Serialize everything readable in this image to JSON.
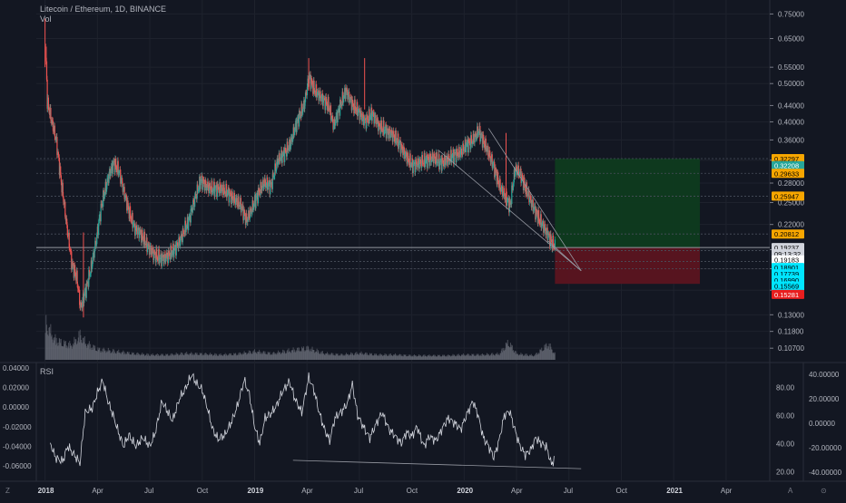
{
  "header": {
    "title": "Litecoin / Ethereum, 1D, BINANCE",
    "volume_label": "Vol",
    "rsi_label": "RSI"
  },
  "colors": {
    "background": "#131722",
    "up": "#26a69a",
    "down": "#ef5350",
    "volume": "#787b86",
    "rsi_line": "#d1d4dc",
    "profit_zone": "#0e3b1f",
    "loss_zone": "#5b1420",
    "grid": "#1e222d",
    "text": "#b2b5be"
  },
  "chart_data": [
    {
      "type": "candlestick",
      "title": "Litecoin / Ethereum, 1D, BINANCE",
      "scale": "log",
      "ylim": [
        0.1,
        0.78
      ],
      "price_axis_ticks": [
        "0.75000",
        "0.65000",
        "0.55000",
        "0.50000",
        "0.44000",
        "0.40000",
        "0.36000",
        "0.32000",
        "0.28000",
        "0.25000",
        "0.22000",
        "0.19000",
        "0.17000",
        "0.15000",
        "0.13000",
        "0.11800",
        "0.10700"
      ],
      "price_axis_values": [
        0.75,
        0.65,
        0.55,
        0.5,
        0.44,
        0.4,
        0.36,
        0.32,
        0.28,
        0.25,
        0.22,
        0.19,
        0.17,
        0.15,
        0.13,
        0.118,
        0.107
      ],
      "price_badges": [
        {
          "label": "0.32297",
          "value": 0.32297,
          "color": "#f7a600",
          "text_color": "#000000"
        },
        {
          "label": "0.32208",
          "value": 0.31,
          "color": "#26a69a",
          "text_color": "#ffffff"
        },
        {
          "label": "0.29633",
          "value": 0.29633,
          "color": "#f7a600",
          "text_color": "#000000"
        },
        {
          "label": "0.25947",
          "value": 0.25947,
          "color": "#f7a600",
          "text_color": "#000000"
        },
        {
          "label": "0.20812",
          "value": 0.20812,
          "color": "#f7a600",
          "text_color": "#000000"
        },
        {
          "label": "0.19237",
          "value": 0.19237,
          "color": "#d1d4dc",
          "text_color": "#000000"
        },
        {
          "label": "09:13:32",
          "value": 0.1856,
          "color": "#d1d4dc",
          "text_color": "#000000"
        },
        {
          "label": "0.19183",
          "value": 0.179,
          "color": "#ffffff",
          "text_color": "#000000"
        },
        {
          "label": "0.18901",
          "value": 0.1712,
          "color": "#00e5ff",
          "text_color": "#000000"
        },
        {
          "label": "0.17739",
          "value": 0.165,
          "color": "#00e5ff",
          "text_color": "#000000"
        },
        {
          "label": "0.16990",
          "value": 0.1592,
          "color": "#00e5ff",
          "text_color": "#000000"
        },
        {
          "label": "0.15569",
          "value": 0.1537,
          "color": "#00e5ff",
          "text_color": "#000000"
        },
        {
          "label": "0.15281",
          "value": 0.1464,
          "color": "#e91e1e",
          "text_color": "#ffffff"
        }
      ],
      "x_axis_labels": [
        "2018",
        "Apr",
        "Jul",
        "Oct",
        "2019",
        "Apr",
        "Jul",
        "Oct",
        "2020",
        "Apr",
        "Jul",
        "Oct",
        "2021",
        "Apr"
      ],
      "x_axis_months": [
        0,
        3,
        6,
        9,
        12,
        15,
        18,
        21,
        24,
        27,
        30,
        33,
        36,
        39
      ],
      "x_range_months": [
        -0.5,
        41.5
      ],
      "close_series": [
        [
          0.0,
          0.62
        ],
        [
          0.1,
          0.45
        ],
        [
          0.3,
          0.41
        ],
        [
          0.6,
          0.36
        ],
        [
          0.9,
          0.28
        ],
        [
          1.2,
          0.22
        ],
        [
          1.5,
          0.175
        ],
        [
          1.8,
          0.16
        ],
        [
          2.0,
          0.135
        ],
        [
          2.3,
          0.15
        ],
        [
          2.6,
          0.17
        ],
        [
          2.9,
          0.2
        ],
        [
          3.2,
          0.245
        ],
        [
          3.6,
          0.29
        ],
        [
          3.9,
          0.315
        ],
        [
          4.2,
          0.3
        ],
        [
          4.5,
          0.265
        ],
        [
          4.8,
          0.235
        ],
        [
          5.1,
          0.215
        ],
        [
          5.4,
          0.21
        ],
        [
          5.8,
          0.195
        ],
        [
          6.2,
          0.185
        ],
        [
          6.6,
          0.18
        ],
        [
          7.0,
          0.183
        ],
        [
          7.4,
          0.19
        ],
        [
          7.8,
          0.205
        ],
        [
          8.2,
          0.225
        ],
        [
          8.6,
          0.26
        ],
        [
          8.9,
          0.285
        ],
        [
          9.2,
          0.275
        ],
        [
          9.6,
          0.27
        ],
        [
          10.0,
          0.272
        ],
        [
          10.4,
          0.265
        ],
        [
          10.8,
          0.255
        ],
        [
          11.2,
          0.245
        ],
        [
          11.5,
          0.225
        ],
        [
          11.8,
          0.24
        ],
        [
          12.2,
          0.265
        ],
        [
          12.5,
          0.28
        ],
        [
          12.9,
          0.275
        ],
        [
          13.3,
          0.32
        ],
        [
          13.6,
          0.33
        ],
        [
          14.0,
          0.35
        ],
        [
          14.4,
          0.4
        ],
        [
          14.8,
          0.44
        ],
        [
          15.1,
          0.52
        ],
        [
          15.4,
          0.48
        ],
        [
          15.8,
          0.46
        ],
        [
          16.2,
          0.44
        ],
        [
          16.5,
          0.39
        ],
        [
          16.8,
          0.43
        ],
        [
          17.2,
          0.48
        ],
        [
          17.6,
          0.44
        ],
        [
          18.0,
          0.42
        ],
        [
          18.3,
          0.4
        ],
        [
          18.7,
          0.42
        ],
        [
          19.1,
          0.39
        ],
        [
          19.5,
          0.38
        ],
        [
          19.9,
          0.37
        ],
        [
          20.3,
          0.35
        ],
        [
          20.6,
          0.33
        ],
        [
          21.0,
          0.31
        ],
        [
          21.4,
          0.315
        ],
        [
          21.8,
          0.32
        ],
        [
          22.2,
          0.325
        ],
        [
          22.6,
          0.315
        ],
        [
          23.0,
          0.32
        ],
        [
          23.4,
          0.33
        ],
        [
          23.8,
          0.335
        ],
        [
          24.1,
          0.35
        ],
        [
          24.5,
          0.36
        ],
        [
          24.8,
          0.38
        ],
        [
          25.1,
          0.355
        ],
        [
          25.4,
          0.33
        ],
        [
          25.7,
          0.305
        ],
        [
          26.0,
          0.275
        ],
        [
          26.3,
          0.26
        ],
        [
          26.6,
          0.245
        ],
        [
          26.9,
          0.305
        ],
        [
          27.2,
          0.295
        ],
        [
          27.5,
          0.27
        ],
        [
          27.9,
          0.245
        ],
        [
          28.3,
          0.225
        ],
        [
          28.7,
          0.21
        ],
        [
          29.0,
          0.198
        ],
        [
          29.2,
          0.19237
        ]
      ],
      "wick_highlights": [
        {
          "month": 0.0,
          "high": 0.73,
          "low": 0.55
        },
        {
          "month": 2.2,
          "high": 0.21,
          "low": 0.128
        },
        {
          "month": 15.1,
          "high": 0.58,
          "low": 0.48
        },
        {
          "month": 18.3,
          "high": 0.58,
          "low": 0.43
        },
        {
          "month": 26.4,
          "high": 0.375,
          "low": 0.245
        }
      ],
      "volume_series": [
        [
          0.0,
          0.9
        ],
        [
          0.5,
          0.5
        ],
        [
          1.0,
          0.4
        ],
        [
          1.5,
          0.35
        ],
        [
          2.0,
          0.6
        ],
        [
          2.3,
          0.4
        ],
        [
          3.0,
          0.25
        ],
        [
          4.0,
          0.2
        ],
        [
          5.0,
          0.15
        ],
        [
          6.0,
          0.12
        ],
        [
          7.0,
          0.12
        ],
        [
          8.0,
          0.15
        ],
        [
          9.0,
          0.14
        ],
        [
          10.0,
          0.12
        ],
        [
          11.0,
          0.14
        ],
        [
          12.0,
          0.2
        ],
        [
          13.0,
          0.15
        ],
        [
          14.0,
          0.22
        ],
        [
          15.0,
          0.28
        ],
        [
          16.0,
          0.15
        ],
        [
          17.0,
          0.12
        ],
        [
          18.0,
          0.16
        ],
        [
          19.0,
          0.12
        ],
        [
          20.0,
          0.12
        ],
        [
          21.0,
          0.1
        ],
        [
          22.0,
          0.1
        ],
        [
          23.0,
          0.1
        ],
        [
          24.0,
          0.12
        ],
        [
          25.0,
          0.12
        ],
        [
          26.0,
          0.14
        ],
        [
          26.5,
          0.42
        ],
        [
          27.0,
          0.14
        ],
        [
          28.0,
          0.1
        ],
        [
          28.8,
          0.38
        ],
        [
          29.2,
          0.12
        ]
      ],
      "trend_lines": [
        {
          "from": [
            22.5,
            0.34
          ],
          "to": [
            30.7,
            0.168
          ]
        },
        {
          "from": [
            25.4,
            0.385
          ],
          "to": [
            30.7,
            0.168
          ]
        },
        {
          "from": [
            28.8,
            0.2
          ],
          "to": [
            30.7,
            0.168
          ]
        }
      ],
      "horizontal_levels": [
        0.32297,
        0.29633,
        0.25947,
        0.20812,
        0.19237,
        0.18901,
        0.17739,
        0.1699
      ],
      "position_tool": {
        "start_month": 29.2,
        "end_month": 37.5,
        "entry": 0.19237,
        "target": 0.32297,
        "stop": 0.15569
      }
    },
    {
      "type": "line",
      "title": "RSI",
      "left_axis_ticks": [
        "0.04000",
        "0.02000",
        "0.00000",
        "-0.02000",
        "-0.04000",
        "-0.06000"
      ],
      "right_axis_ticks_inner": [
        "80.00",
        "60.00",
        "40.00",
        "20.00"
      ],
      "right_axis_ticks_outer": [
        "40.00000",
        "20.00000",
        "0.00000",
        "-20.00000",
        "-40.00000"
      ],
      "ylim": [
        15,
        95
      ],
      "rsi_series": [
        [
          0.3,
          40
        ],
        [
          0.6,
          30
        ],
        [
          1.0,
          27
        ],
        [
          1.3,
          38
        ],
        [
          1.6,
          33
        ],
        [
          2.0,
          26
        ],
        [
          2.3,
          62
        ],
        [
          2.7,
          65
        ],
        [
          3.0,
          76
        ],
        [
          3.3,
          85
        ],
        [
          3.6,
          70
        ],
        [
          3.9,
          60
        ],
        [
          4.2,
          48
        ],
        [
          4.5,
          38
        ],
        [
          4.8,
          46
        ],
        [
          5.2,
          38
        ],
        [
          5.6,
          44
        ],
        [
          6.0,
          38
        ],
        [
          6.3,
          47
        ],
        [
          6.7,
          70
        ],
        [
          7.0,
          63
        ],
        [
          7.3,
          56
        ],
        [
          7.7,
          72
        ],
        [
          8.0,
          78
        ],
        [
          8.4,
          89
        ],
        [
          8.7,
          82
        ],
        [
          9.0,
          78
        ],
        [
          9.3,
          65
        ],
        [
          9.6,
          50
        ],
        [
          9.9,
          43
        ],
        [
          10.3,
          46
        ],
        [
          10.7,
          56
        ],
        [
          11.0,
          66
        ],
        [
          11.4,
          85
        ],
        [
          11.7,
          75
        ],
        [
          12.0,
          52
        ],
        [
          12.3,
          40
        ],
        [
          12.6,
          58
        ],
        [
          13.0,
          62
        ],
        [
          13.3,
          68
        ],
        [
          13.6,
          77
        ],
        [
          14.0,
          84
        ],
        [
          14.3,
          72
        ],
        [
          14.7,
          62
        ],
        [
          15.1,
          87
        ],
        [
          15.4,
          78
        ],
        [
          15.7,
          62
        ],
        [
          16.0,
          50
        ],
        [
          16.3,
          42
        ],
        [
          16.6,
          58
        ],
        [
          17.0,
          63
        ],
        [
          17.3,
          68
        ],
        [
          17.6,
          82
        ],
        [
          17.9,
          60
        ],
        [
          18.3,
          50
        ],
        [
          18.6,
          44
        ],
        [
          19.0,
          55
        ],
        [
          19.3,
          62
        ],
        [
          19.7,
          50
        ],
        [
          20.0,
          46
        ],
        [
          20.4,
          40
        ],
        [
          20.7,
          48
        ],
        [
          21.0,
          45
        ],
        [
          21.3,
          52
        ],
        [
          21.7,
          38
        ],
        [
          22.0,
          45
        ],
        [
          22.4,
          42
        ],
        [
          22.8,
          52
        ],
        [
          23.1,
          58
        ],
        [
          23.5,
          54
        ],
        [
          23.8,
          50
        ],
        [
          24.2,
          62
        ],
        [
          24.5,
          70
        ],
        [
          24.8,
          60
        ],
        [
          25.1,
          44
        ],
        [
          25.4,
          38
        ],
        [
          25.7,
          30
        ],
        [
          26.0,
          42
        ],
        [
          26.3,
          60
        ],
        [
          26.6,
          63
        ],
        [
          26.9,
          50
        ],
        [
          27.2,
          38
        ],
        [
          27.5,
          32
        ],
        [
          27.8,
          35
        ],
        [
          28.1,
          44
        ],
        [
          28.4,
          40
        ],
        [
          28.7,
          38
        ],
        [
          29.0,
          25
        ],
        [
          29.2,
          30
        ]
      ],
      "divergence_line": {
        "from": [
          14.2,
          28
        ],
        "to": [
          30.7,
          22
        ]
      }
    }
  ],
  "toolbar": {
    "corner_left": "Z",
    "corner_right_a": "A",
    "corner_right_b": "⊙"
  }
}
